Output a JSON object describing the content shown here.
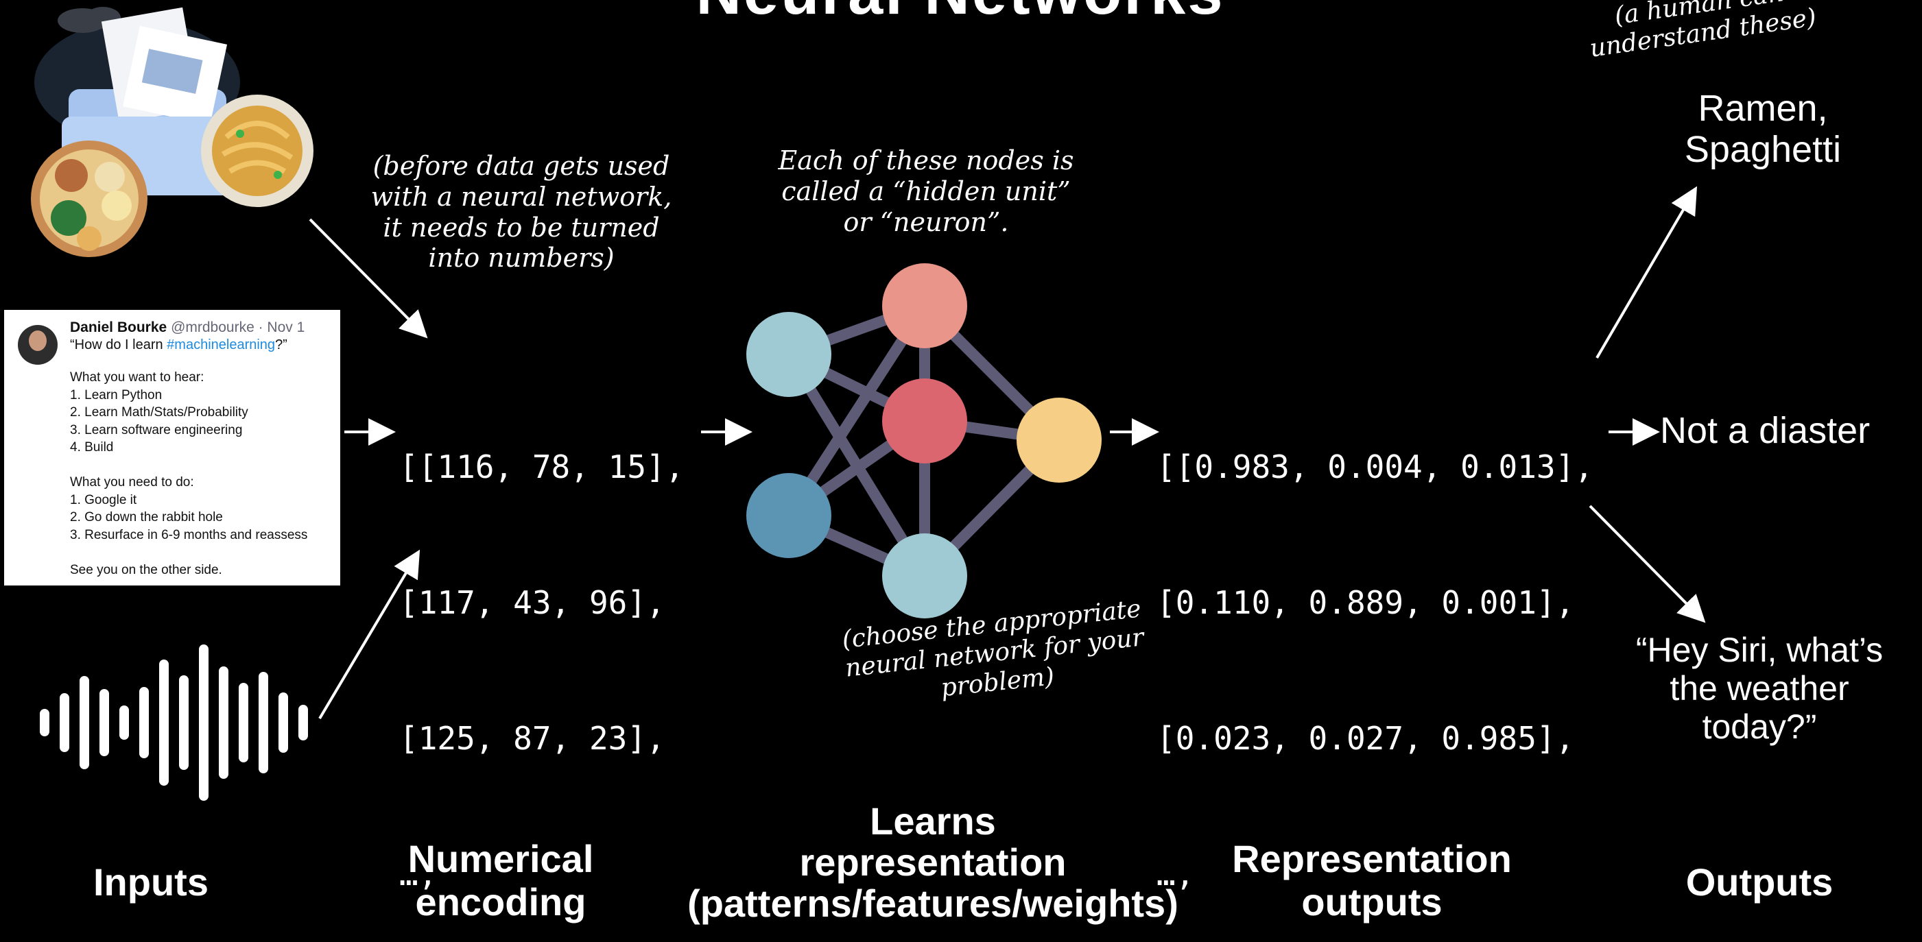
{
  "title_partial": "Neural Networks",
  "notes": {
    "encoding": [
      "(before data gets used",
      "with a neural network,",
      "it needs to be turned",
      "into numbers)"
    ],
    "hidden_unit": [
      "Each of these nodes is",
      "called a “hidden unit”",
      "or “neuron”."
    ],
    "choose": [
      "(choose the appropriate",
      "neural network for your",
      "problem)"
    ],
    "human": [
      "(a human can",
      "understand these)"
    ]
  },
  "tweet": {
    "name": "Daniel Bourke",
    "handle": "@mrdbourke · Nov 1",
    "question_prefix": "“How do I learn ",
    "question_tag": "#machinelearning",
    "question_suffix": "?”",
    "lines": [
      "What you want to hear:",
      "1. Learn Python",
      "2. Learn Math/Stats/Probability",
      "3. Learn software engineering",
      "4. Build",
      "",
      "What you need to do:",
      "1. Google it",
      "2. Go down the rabbit hole",
      "3. Resurface in 6-9 months and reassess",
      "",
      "See you on the other side."
    ]
  },
  "encoding_matrix": [
    "[[116, 78, 15],",
    "[117, 43, 96],",
    "[125, 87, 23],",
    "…,"
  ],
  "output_matrix": [
    "[[0.983, 0.004, 0.013],",
    "[0.110, 0.889, 0.001],",
    "[0.023, 0.027, 0.985],",
    "…,"
  ],
  "outputs": {
    "food": [
      "Ramen,",
      "Spaghetti"
    ],
    "tweet": "Not a diaster",
    "speech": [
      "“Hey Siri, what’s",
      "the weather",
      "today?”"
    ]
  },
  "labels": {
    "inputs": "Inputs",
    "encoding": [
      "Numerical",
      "encoding"
    ],
    "learns": [
      "Learns",
      "representation",
      "(patterns/features/weights)"
    ],
    "repr_outputs": [
      "Representation",
      "outputs"
    ],
    "outputs": "Outputs"
  },
  "node_colors": {
    "top": "#E9958A",
    "middle": "#DC6670",
    "left_top": "#9FCAD3",
    "left_bottom": "#5C94B4",
    "bottom": "#9FCAD3",
    "right": "#F6CE85",
    "edge": "#5E5B77"
  }
}
